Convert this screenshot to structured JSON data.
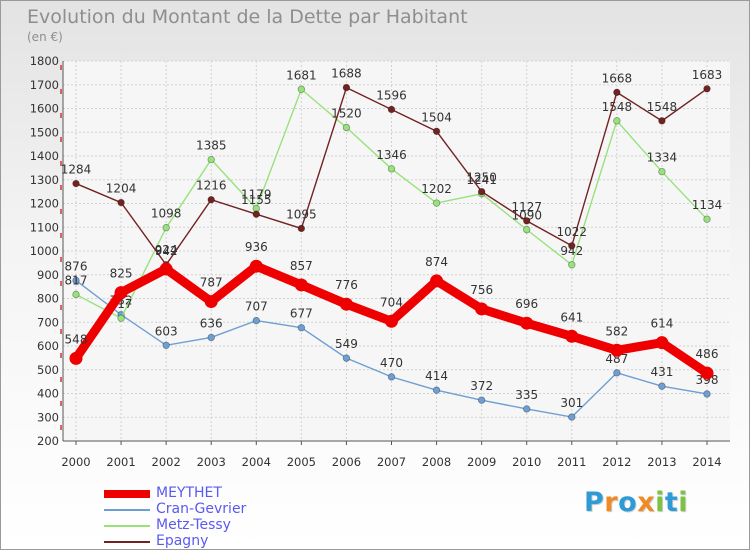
{
  "title": "Evolution du Montant de la Dette par Habitant",
  "unit": "(en €)",
  "brand": {
    "letters": [
      "P",
      "r",
      "o",
      "x",
      "i",
      "t",
      "i"
    ],
    "colors": [
      "#2f9bd5",
      "#f08a24",
      "#2f9bd5",
      "#f08a24",
      "#7cc243",
      "#2f9bd5",
      "#7cc243"
    ]
  },
  "chart_data": {
    "type": "line",
    "x": [
      "2000",
      "2001",
      "2002",
      "2003",
      "2004",
      "2005",
      "2006",
      "2007",
      "2008",
      "2009",
      "2010",
      "2011",
      "2012",
      "2013",
      "2014"
    ],
    "ylim": [
      200,
      1800
    ],
    "yticks": [
      200,
      300,
      400,
      500,
      600,
      700,
      800,
      900,
      1000,
      1100,
      1200,
      1300,
      1400,
      1500,
      1600,
      1700,
      1800
    ],
    "grid": true,
    "legend_position": "bottom-left",
    "series": [
      {
        "name": "MEYTHET",
        "color": "#ee0000",
        "emphasis": true,
        "values": [
          548,
          825,
          924,
          787,
          936,
          857,
          776,
          704,
          874,
          756,
          696,
          641,
          582,
          614,
          486
        ],
        "labels": [
          "548",
          "825",
          "924",
          "787",
          "936",
          "857",
          "776",
          "704",
          "874",
          "756",
          "696",
          "641",
          "582",
          "614",
          "486"
        ]
      },
      {
        "name": "Cran-Gevrier",
        "color": "#6e9fd2",
        "values": [
          876,
          732,
          603,
          636,
          707,
          677,
          549,
          470,
          414,
          372,
          335,
          301,
          487,
          431,
          398
        ],
        "labels": [
          "876",
          "732",
          "603",
          "636",
          "707",
          "677",
          "549",
          "470",
          "414",
          "372",
          "335",
          "301",
          "487",
          "431",
          "398"
        ]
      },
      {
        "name": "Metz-Tessy",
        "color": "#98e27c",
        "values": [
          817,
          717,
          1098,
          1385,
          1179,
          1681,
          1520,
          1346,
          1202,
          1241,
          1090,
          942,
          1548,
          1334,
          1134
        ],
        "labels": [
          "817",
          "717",
          "1098",
          "1385",
          "1179",
          "1681",
          "1520",
          "1346",
          "1202",
          "1241",
          "1090",
          "942",
          "1548",
          "1334",
          "1134"
        ]
      },
      {
        "name": "Epagny",
        "color": "#732222",
        "values": [
          1284,
          1204,
          942,
          1216,
          1155,
          1095,
          1688,
          1596,
          1504,
          1250,
          1127,
          1022,
          1668,
          1548,
          1683
        ],
        "labels": [
          "1284",
          "1204",
          "942",
          "1216",
          "1155",
          "1095",
          "1688",
          "1596",
          "1504",
          "1250",
          "1127",
          "1022",
          "1668",
          "1548",
          "1683"
        ]
      }
    ]
  }
}
